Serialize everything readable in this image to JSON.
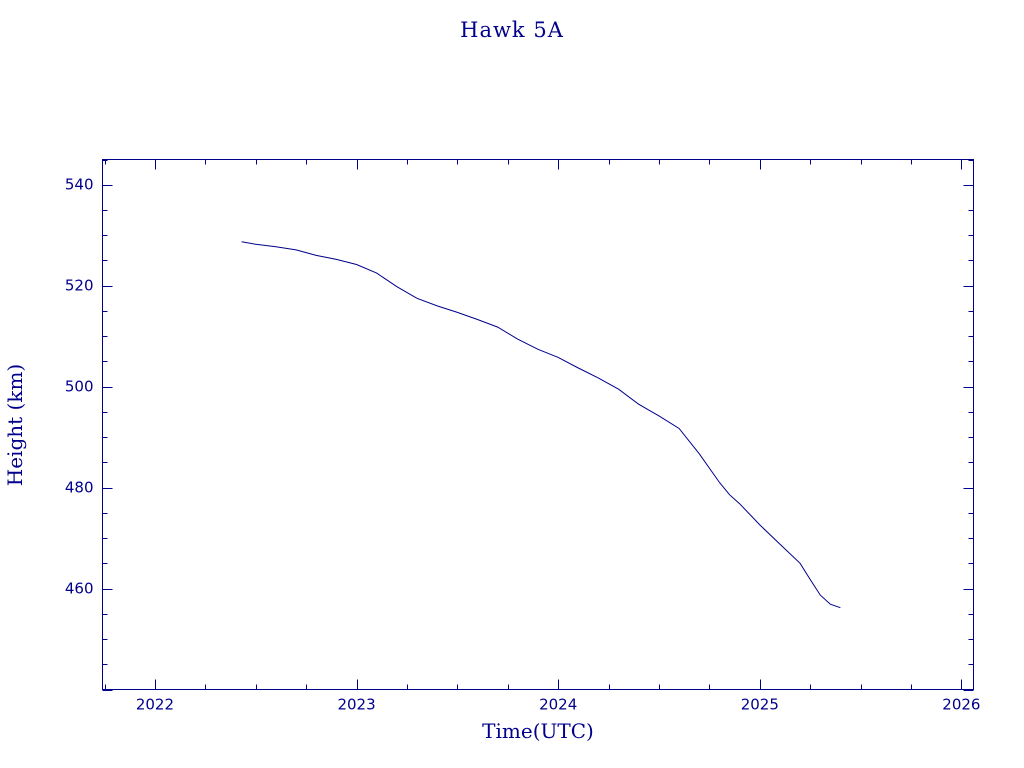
{
  "chart_data": {
    "type": "line",
    "title": "Hawk 5A",
    "xlabel": "Time(UTC)",
    "ylabel": "Height (km)",
    "xlim": [
      2021.74,
      2026.06
    ],
    "ylim": [
      440,
      545
    ],
    "x_ticks": [
      2022,
      2023,
      2024,
      2025,
      2026
    ],
    "x_tick_labels": [
      "2022",
      "2023",
      "2024",
      "2025",
      "2026"
    ],
    "y_ticks": [
      460,
      480,
      500,
      520,
      540
    ],
    "y_tick_labels": [
      "460",
      "480",
      "500",
      "520",
      "540"
    ],
    "grid": false,
    "colors": {
      "line": "#00008b",
      "text": "#00008b",
      "background": "#ffffff"
    },
    "series": [
      {
        "x": [
          2022.43,
          2022.5,
          2022.6,
          2022.7,
          2022.8,
          2022.9,
          2023.0,
          2023.1,
          2023.2,
          2023.3,
          2023.4,
          2023.5,
          2023.6,
          2023.7,
          2023.8,
          2023.9,
          2024.0,
          2024.1,
          2024.2,
          2024.3,
          2024.4,
          2024.5,
          2024.6,
          2024.7,
          2024.8,
          2024.85,
          2024.9,
          2025.0,
          2025.1,
          2025.2,
          2025.25,
          2025.3,
          2025.35,
          2025.4
        ],
        "y": [
          528.7,
          528.2,
          527.7,
          527.1,
          526.0,
          525.2,
          524.2,
          522.5,
          519.8,
          517.5,
          516.0,
          514.7,
          513.3,
          511.8,
          509.4,
          507.4,
          505.8,
          503.7,
          501.7,
          499.5,
          496.5,
          494.2,
          491.7,
          486.7,
          481.0,
          478.6,
          476.8,
          472.6,
          468.8,
          465.0,
          461.8,
          458.7,
          456.9,
          456.2
        ]
      }
    ]
  }
}
